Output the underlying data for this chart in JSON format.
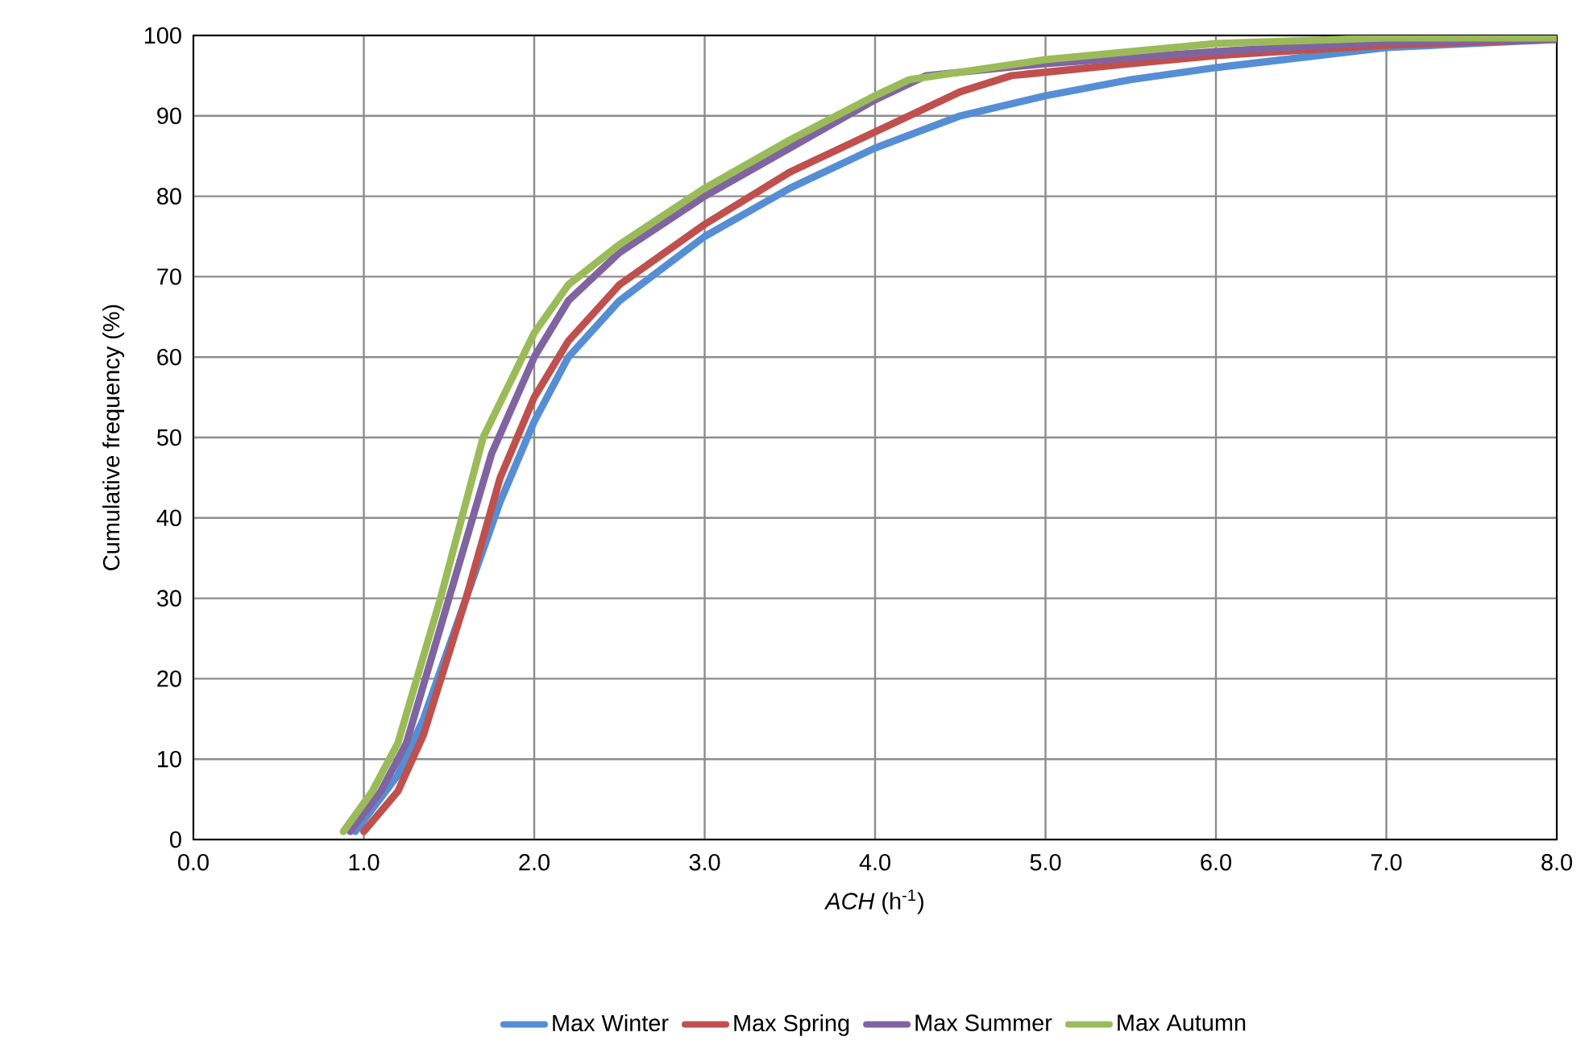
{
  "chart_data": {
    "type": "line",
    "xlabel": "*ACH* (h$^{-1}$)",
    "ylabel": "Cumulative frequency (%)",
    "xlim": [
      0,
      8
    ],
    "ylim": [
      0,
      100
    ],
    "xticks": [
      {
        "value": 0,
        "label": "0.0"
      },
      {
        "value": 1,
        "label": "1.0"
      },
      {
        "value": 2,
        "label": "2.0"
      },
      {
        "value": 3,
        "label": "3.0"
      },
      {
        "value": 4,
        "label": "4.0"
      },
      {
        "value": 5,
        "label": "5.0"
      },
      {
        "value": 6,
        "label": "6.0"
      },
      {
        "value": 7,
        "label": "7.0"
      },
      {
        "value": 8,
        "label": "8.0"
      }
    ],
    "yticks": [
      0,
      10,
      20,
      30,
      40,
      50,
      60,
      70,
      80,
      90,
      100
    ],
    "grid": true,
    "legend": "bottom",
    "marker": "none",
    "line_style": "solid",
    "series": [
      {
        "name": "Max Winter",
        "color": "#558ed5",
        "x": [
          0.95,
          1.2,
          1.35,
          1.6,
          1.8,
          2.0,
          2.2,
          2.5,
          3.0,
          3.5,
          4.0,
          4.5,
          5.0,
          5.5,
          6.0,
          7.0,
          8.0
        ],
        "values": [
          1,
          8,
          15,
          30,
          42,
          52,
          60,
          67,
          75,
          81,
          86,
          90,
          92.5,
          94.5,
          96,
          98.5,
          99.5
        ]
      },
      {
        "name": "Max Spring",
        "color": "#c0504d",
        "x": [
          1.0,
          1.2,
          1.35,
          1.6,
          1.8,
          2.0,
          2.2,
          2.5,
          3.0,
          3.5,
          4.0,
          4.5,
          4.8,
          5.5,
          6.0,
          7.0,
          8.0
        ],
        "values": [
          1,
          6,
          13,
          30,
          45,
          55,
          62,
          69,
          76.5,
          83,
          88,
          93,
          95,
          96.5,
          97.5,
          98.8,
          99.5
        ]
      },
      {
        "name": "Max Summer",
        "color": "#8064a2",
        "x": [
          0.92,
          1.1,
          1.25,
          1.5,
          1.75,
          2.0,
          2.2,
          2.5,
          3.0,
          3.5,
          4.0,
          4.3,
          5.0,
          6.0,
          7.0,
          8.0
        ],
        "values": [
          1,
          6,
          12,
          30,
          48,
          60,
          67,
          73,
          80,
          86,
          92,
          95,
          96.5,
          98,
          99.2,
          99.5
        ]
      },
      {
        "name": "Max Autumn",
        "color": "#9bbb59",
        "x": [
          0.88,
          1.05,
          1.2,
          1.45,
          1.7,
          2.0,
          2.2,
          2.5,
          3.0,
          3.5,
          4.0,
          4.2,
          5.0,
          6.0,
          7.0,
          8.0
        ],
        "values": [
          1,
          6,
          12,
          30,
          50,
          63,
          69,
          74,
          81,
          87,
          92.5,
          94.5,
          97,
          99,
          99.7,
          99.7
        ]
      }
    ]
  }
}
